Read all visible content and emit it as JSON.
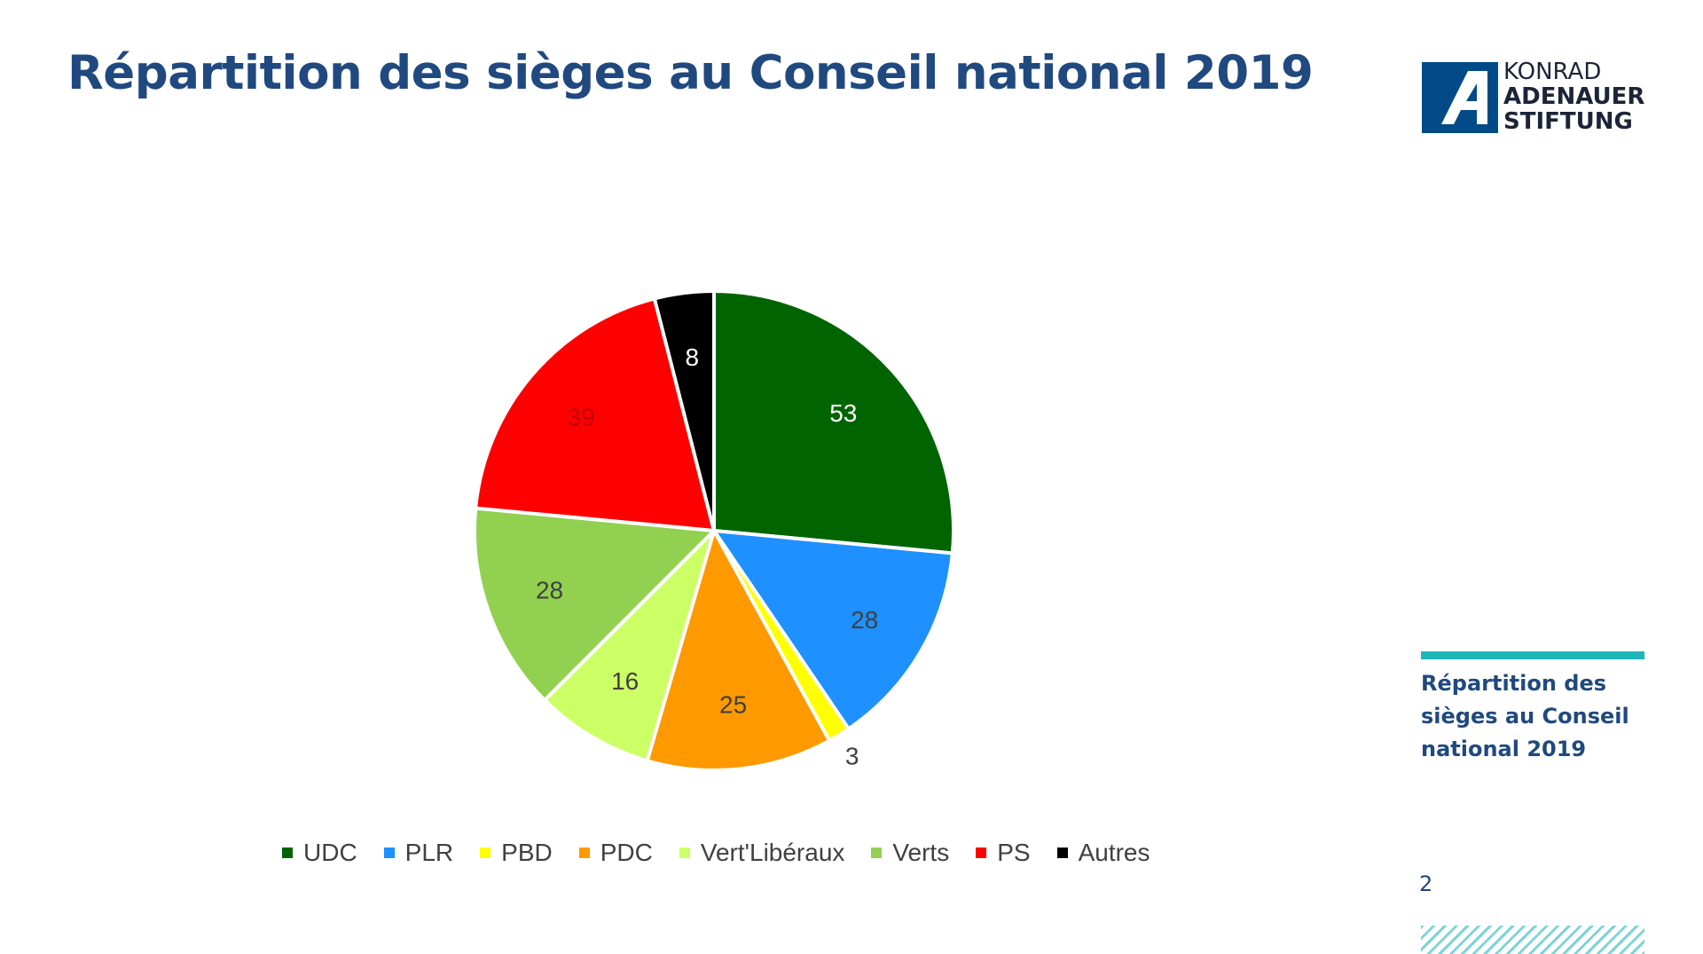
{
  "slide": {
    "title": "Répartition des sièges au Conseil national 2019",
    "side_caption": "Répartition des sièges au Conseil national 2019",
    "page_number": "2",
    "accent_color": "#1fb5b9",
    "title_color": "#20497f"
  },
  "logo": {
    "line1": "KONRAD",
    "line2": "ADENAUER",
    "line3": "STIFTUNG",
    "mark_color": "#004b87"
  },
  "chart_data": {
    "type": "pie",
    "title": "",
    "categories": [
      "UDC",
      "PLR",
      "PBD",
      "PDC",
      "Vert'Libéraux",
      "Verts",
      "PS",
      "Autres"
    ],
    "values": [
      53,
      28,
      3,
      25,
      16,
      28,
      39,
      8
    ],
    "labels": [
      "53",
      "28",
      "3",
      "25",
      "16",
      "28",
      "39",
      "8"
    ],
    "colors": [
      "#006400",
      "#1e90ff",
      "#ffff00",
      "#ff9900",
      "#ccff66",
      "#92d050",
      "#ff0000",
      "#000000"
    ],
    "label_colors": [
      "#ffffff",
      "#404040",
      "#404040",
      "#404040",
      "#404040",
      "#404040",
      "#c00000",
      "#ffffff"
    ],
    "start_angle_deg": 0,
    "direction": "clockwise",
    "legend_position": "bottom"
  }
}
